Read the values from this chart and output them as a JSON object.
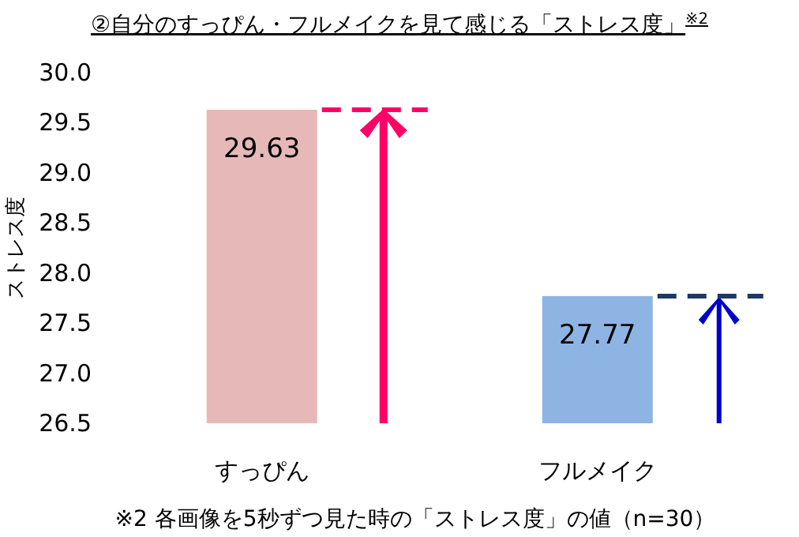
{
  "chart_data": {
    "type": "bar",
    "title": "②自分のすっぴん・フルメイクを見て感じる「ストレス度」$^{※2}$",
    "ylabel": "ストレス度",
    "categories": [
      "すっぴん",
      "フルメイク"
    ],
    "values": [
      29.63,
      27.77
    ],
    "colors": [
      "#e6b9b8",
      "#8eb4e3"
    ],
    "ylim": [
      26.5,
      30.0
    ],
    "yticks": [
      26.5,
      {
        "value": 27,
        "label": "27.0"
      },
      27.5,
      {
        "value": 28,
        "label": "28.0"
      },
      28.5,
      {
        "value": 29,
        "label": "29.0"
      },
      29.5,
      {
        "value": 30,
        "label": "30.0"
      }
    ],
    "data_labels": true,
    "grid": false,
    "annotations": [
      "※2  各画像を5秒ずつ見た時の「ストレス度」の値（n=30）"
    ]
  }
}
